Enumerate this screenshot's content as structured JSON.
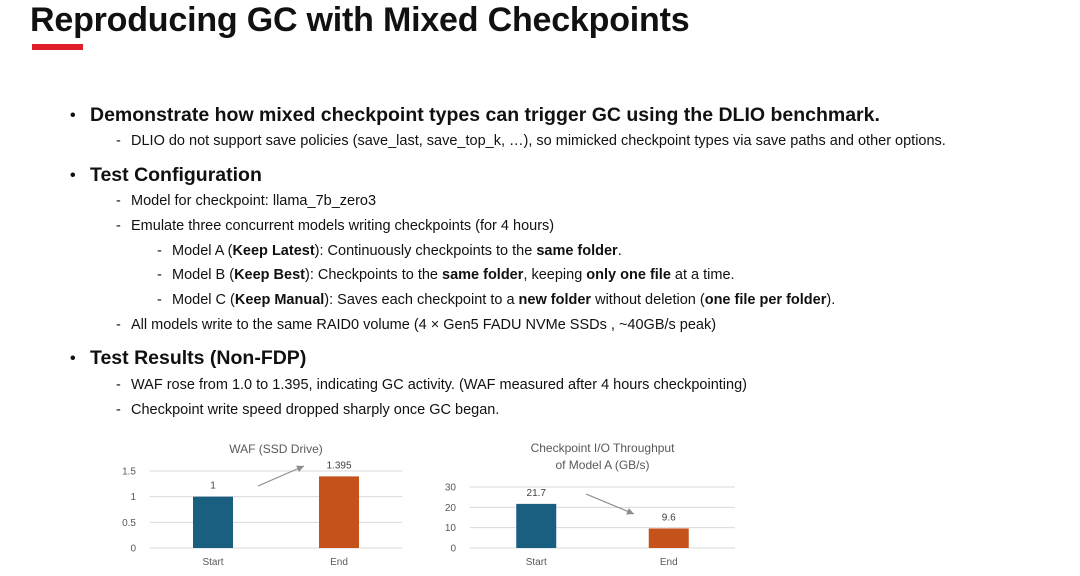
{
  "title": "Reproducing GC with Mixed Checkpoints",
  "accent_color": "#e01e2a",
  "bullet_glyph": "•",
  "dash_glyph": "-",
  "content": {
    "b1": {
      "heading": "Demonstrate how mixed checkpoint types can trigger GC using the DLIO benchmark.",
      "sub": "DLIO do not support save policies (save_last, save_top_k, …), so mimicked checkpoint types via save paths and other options."
    },
    "b2": {
      "heading": "Test Configuration",
      "model": "Model for checkpoint: llama_7b_zero3",
      "emulate": "Emulate three concurrent models writing checkpoints (for 4 hours)",
      "a": {
        "p1": "Model A (",
        "b1": "Keep Latest",
        "p2": "): Continuously checkpoints to the ",
        "b2": "same folder",
        "p3": "."
      },
      "b": {
        "p1": "Model B (",
        "b1": "Keep Best",
        "p2": "): Checkpoints to the ",
        "b2": "same folder",
        "p3": ", keeping ",
        "b3": "only one file",
        "p4": " at a time."
      },
      "c": {
        "p1": "Model C (",
        "b1": "Keep Manual",
        "p2": "): Saves each checkpoint to a ",
        "b2": "new folder",
        "p3": " without deletion (",
        "b3": "one file per folder",
        "p4": ")."
      },
      "raid": "All models write to the same RAID0 volume (4 × Gen5 FADU NVMe SSDs , ~40GB/s peak)"
    },
    "b3": {
      "heading": "Test Results (Non-FDP)",
      "waf": "WAF rose from 1.0 to 1.395, indicating GC activity. (WAF measured after 4 hours checkpointing)",
      "speed": "Checkpoint write speed dropped sharply once GC began."
    }
  },
  "chart_data": [
    {
      "type": "bar",
      "title": "WAF (SSD Drive)",
      "categories": [
        "Start",
        "End"
      ],
      "values": [
        1,
        1.395
      ],
      "value_labels": [
        "1",
        "1.395"
      ],
      "ylim": [
        0,
        1.5
      ],
      "yticks": [
        0,
        0.5,
        1,
        1.5
      ],
      "ytick_labels": [
        "0",
        "0.5",
        "1",
        "1.5"
      ],
      "bar_colors": [
        "#1a5e80",
        "#c4521a"
      ],
      "grid": true,
      "trend_arrow": "up"
    },
    {
      "type": "bar",
      "title": [
        "Checkpoint I/O Throughput",
        "of Model A (GB/s)"
      ],
      "categories": [
        "Start",
        "End"
      ],
      "values": [
        21.7,
        9.6
      ],
      "value_labels": [
        "21.7",
        "9.6"
      ],
      "ylim": [
        0,
        30
      ],
      "yticks": [
        0,
        10,
        20,
        30
      ],
      "ytick_labels": [
        "0",
        "10",
        "20",
        "30"
      ],
      "bar_colors": [
        "#1a5e80",
        "#c4521a"
      ],
      "grid": true,
      "trend_arrow": "down"
    }
  ]
}
